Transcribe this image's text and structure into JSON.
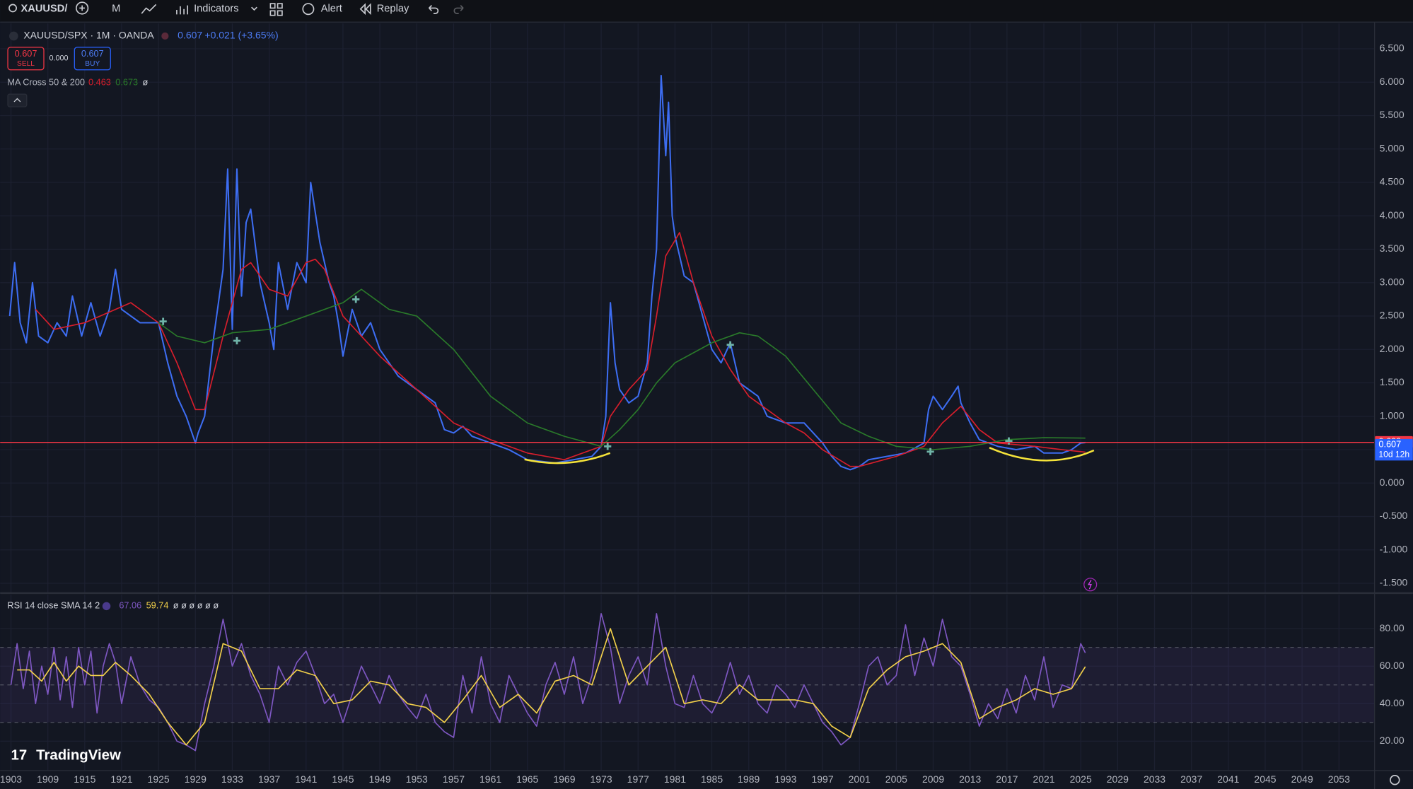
{
  "toolbar": {
    "symbol": "XAUUSD/",
    "interval": "M",
    "indicators": "Indicators",
    "alert": "Alert",
    "replay": "Replay"
  },
  "watermark": "TradingView",
  "chart_data": [
    {
      "type": "line",
      "title": "XAUUSD/SPX · 1M · OANDA",
      "last": 0.607,
      "change": "+0.021 (+3.65%)",
      "sell": {
        "price": 0.607,
        "label": "SELL"
      },
      "spread": "0.000",
      "buy": {
        "price": 0.607,
        "label": "BUY"
      },
      "indicator": {
        "name": "MA Cross 50 & 200",
        "values": [
          0.463,
          0.673
        ],
        "extra": "ø"
      },
      "xlim": [
        1901.3,
        2056.8
      ],
      "xticks": [
        1903,
        1909,
        1915,
        1921,
        1925,
        1929,
        1933,
        1937,
        1941,
        1945,
        1949,
        1953,
        1957,
        1961,
        1965,
        1969,
        1973,
        1977,
        1981,
        1985,
        1989,
        1993,
        1997,
        2001,
        2005,
        2009,
        2013,
        2017,
        2021,
        2025,
        2029,
        2033,
        2037,
        2041,
        2045,
        2049,
        2053
      ],
      "ylim": [
        -1.64,
        6.88
      ],
      "yticks": [
        {
          "value": 6.5,
          "label": "6.500"
        },
        {
          "value": 6,
          "label": "6.000"
        },
        {
          "value": 5.5,
          "label": "5.500"
        },
        {
          "value": 5,
          "label": "5.000"
        },
        {
          "value": 4.5,
          "label": "4.500"
        },
        {
          "value": 4,
          "label": "4.000"
        },
        {
          "value": 3.5,
          "label": "3.500"
        },
        {
          "value": 3,
          "label": "3.000"
        },
        {
          "value": 2.5,
          "label": "2.500"
        },
        {
          "value": 2,
          "label": "2.000"
        },
        {
          "value": 1.5,
          "label": "1.500"
        },
        {
          "value": 1,
          "label": "1.000"
        },
        {
          "value": 0.5,
          "label": "0.500"
        },
        {
          "value": 0,
          "label": "0.000"
        },
        {
          "value": -0.5,
          "label": "-0.500"
        },
        {
          "value": -1,
          "label": "-1.000"
        },
        {
          "value": -1.5,
          "label": "-1.500"
        }
      ],
      "grid": true,
      "series": [
        {
          "color": "#3d6df2",
          "x": [
            1902.8,
            1903.6,
            1904.5,
            1905.5,
            1906.5,
            1907.5,
            1909,
            1910.5,
            1912,
            1913,
            1914.5,
            1916,
            1917.5,
            1919,
            1920,
            1921,
            1923,
            1925,
            1926,
            1927,
            1928,
            1929,
            1929.3,
            1930,
            1931,
            1932,
            1932.5,
            1933,
            1933.5,
            1934,
            1934.5,
            1935,
            1936,
            1937,
            1937.5,
            1938,
            1939,
            1940,
            1941,
            1941.5,
            1942.5,
            1943.5,
            1944,
            1944.5,
            1945,
            1946,
            1947,
            1948,
            1949,
            1950,
            1951,
            1953,
            1955,
            1956,
            1957,
            1958,
            1959,
            1961,
            1963,
            1965,
            1968,
            1970,
            1972,
            1973,
            1973.5,
            1974,
            1974.5,
            1975,
            1976,
            1977,
            1978,
            1978.5,
            1979,
            1979.5,
            1980,
            1980.3,
            1980.7,
            1981,
            1982,
            1983,
            1984,
            1985,
            1986,
            1987,
            1988,
            1989,
            1990,
            1991,
            1993,
            1995,
            1997,
            1998,
            1999,
            2000,
            2001,
            2002,
            2004,
            2006,
            2008,
            2008.5,
            2009,
            2010,
            2011,
            2011.7,
            2012,
            2013,
            2014,
            2015,
            2016,
            2018,
            2020,
            2021,
            2023,
            2024,
            2025,
            2025.5
          ],
          "values": [
            2.5,
            3.3,
            2.4,
            2.1,
            3.0,
            2.2,
            2.1,
            2.4,
            2.2,
            2.8,
            2.2,
            2.7,
            2.2,
            2.6,
            3.2,
            2.6,
            2.4,
            2.4,
            1.8,
            1.3,
            1.0,
            0.6,
            0.75,
            1.0,
            2.2,
            3.2,
            4.7,
            2.3,
            4.7,
            2.8,
            3.9,
            4.1,
            3.0,
            2.4,
            2.0,
            3.3,
            2.6,
            3.3,
            3.0,
            4.5,
            3.6,
            3.0,
            2.8,
            2.4,
            1.9,
            2.6,
            2.2,
            2.4,
            2.0,
            1.8,
            1.6,
            1.4,
            1.2,
            0.8,
            0.75,
            0.85,
            0.7,
            0.6,
            0.5,
            0.35,
            0.3,
            0.35,
            0.4,
            0.55,
            1.0,
            2.7,
            1.8,
            1.4,
            1.2,
            1.3,
            1.8,
            2.8,
            3.5,
            6.1,
            4.9,
            5.7,
            4.0,
            3.7,
            3.1,
            3.0,
            2.5,
            2.0,
            1.8,
            2.1,
            1.5,
            1.4,
            1.3,
            1.0,
            0.9,
            0.9,
            0.6,
            0.4,
            0.25,
            0.2,
            0.25,
            0.35,
            0.4,
            0.45,
            0.6,
            1.1,
            1.3,
            1.1,
            1.3,
            1.45,
            1.2,
            0.9,
            0.65,
            0.6,
            0.55,
            0.5,
            0.55,
            0.45,
            0.45,
            0.5,
            0.6,
            0.607
          ]
        },
        {
          "color": "#d81e2c",
          "x": [
            1907,
            1910,
            1915,
            1920,
            1922,
            1925,
            1927,
            1929,
            1930,
            1932,
            1934,
            1935,
            1937,
            1939,
            1941,
            1942,
            1943,
            1945,
            1947,
            1949,
            1953,
            1957,
            1961,
            1965,
            1969,
            1973,
            1974,
            1976,
            1978,
            1979,
            1980,
            1981.5,
            1983,
            1985,
            1987,
            1989,
            1993,
            1995,
            1997,
            2000,
            2001,
            2005,
            2008,
            2010,
            2012,
            2014,
            2016,
            2020,
            2023,
            2025.5
          ],
          "values": [
            2.6,
            2.3,
            2.4,
            2.6,
            2.7,
            2.4,
            1.8,
            1.1,
            1.1,
            2.2,
            3.2,
            3.3,
            2.9,
            2.8,
            3.3,
            3.35,
            3.2,
            2.5,
            2.2,
            1.9,
            1.4,
            0.9,
            0.65,
            0.45,
            0.35,
            0.55,
            1.0,
            1.4,
            1.7,
            2.5,
            3.4,
            3.75,
            3.0,
            2.2,
            1.7,
            1.3,
            0.9,
            0.75,
            0.5,
            0.25,
            0.25,
            0.4,
            0.55,
            0.9,
            1.15,
            0.8,
            0.6,
            0.55,
            0.5,
            0.463
          ]
        },
        {
          "color": "#2a7a2a",
          "x": [
            1925,
            1927,
            1930,
            1933,
            1937,
            1941,
            1945,
            1947,
            1950,
            1953,
            1957,
            1961,
            1965,
            1969,
            1973,
            1975,
            1977,
            1979,
            1981,
            1985,
            1988,
            1990,
            1993,
            1996,
            1999,
            2002,
            2005,
            2009,
            2013,
            2017,
            2021,
            2025.5
          ],
          "values": [
            2.4,
            2.2,
            2.1,
            2.25,
            2.3,
            2.5,
            2.7,
            2.9,
            2.6,
            2.5,
            2.0,
            1.3,
            0.9,
            0.7,
            0.55,
            0.8,
            1.1,
            1.5,
            1.8,
            2.1,
            2.25,
            2.2,
            1.9,
            1.4,
            0.9,
            0.7,
            0.55,
            0.5,
            0.55,
            0.65,
            0.68,
            0.673
          ]
        }
      ],
      "crosses": {
        "color": "#6fb3a8",
        "x": [
          1925.5,
          1933.5,
          1946.4,
          1973.7,
          1987,
          2008.7,
          2017.2
        ],
        "values": [
          2.42,
          2.13,
          2.75,
          0.55,
          2.07,
          0.47,
          0.63
        ]
      },
      "price_lines": [
        {
          "value": 0.609,
          "color": "#f23645",
          "line": true
        },
        {
          "value": 0.607,
          "color": "#2962ff",
          "countdown": "10d 12h"
        }
      ]
    },
    {
      "type": "line",
      "title": "RSI 14 close SMA 14 2",
      "legend_values": [
        67.06,
        59.74
      ],
      "extra": "ø ø ø ø ø ø",
      "ylim": [
        4.6,
        98.2
      ],
      "yticks": [
        {
          "value": 80,
          "label": "80.00"
        },
        {
          "value": 60,
          "label": "60.00"
        },
        {
          "value": 40,
          "label": "40.00"
        },
        {
          "value": 20,
          "label": "20.00"
        }
      ],
      "bands": [
        30,
        50,
        70
      ],
      "series": [
        {
          "color": "#7e57c2",
          "x": [
            1903,
            1904,
            1905,
            1906,
            1907,
            1908,
            1909,
            1910,
            1911,
            1912,
            1913,
            1914,
            1915,
            1916,
            1917,
            1918,
            1919,
            1920,
            1921,
            1922,
            1923,
            1924,
            1925,
            1926,
            1927,
            1928,
            1929,
            1930,
            1931,
            1932,
            1933,
            1934,
            1935,
            1936,
            1937,
            1938,
            1939,
            1940,
            1941,
            1942,
            1943,
            1944,
            1945,
            1946,
            1947,
            1948,
            1949,
            1950,
            1951,
            1952,
            1953,
            1954,
            1955,
            1956,
            1957,
            1958,
            1959,
            1960,
            1961,
            1962,
            1963,
            1964,
            1965,
            1966,
            1967,
            1968,
            1969,
            1970,
            1971,
            1972,
            1973,
            1974,
            1975,
            1976,
            1977,
            1978,
            1979,
            1980,
            1981,
            1982,
            1983,
            1984,
            1985,
            1986,
            1987,
            1988,
            1989,
            1990,
            1991,
            1992,
            1993,
            1994,
            1995,
            1996,
            1997,
            1998,
            1999,
            2000,
            2001,
            2002,
            2003,
            2004,
            2005,
            2006,
            2007,
            2008,
            2009,
            2010,
            2011,
            2012,
            2013,
            2014,
            2015,
            2016,
            2017,
            2018,
            2019,
            2020,
            2021,
            2022,
            2023,
            2024,
            2025,
            2025.5
          ],
          "values": [
            50,
            72,
            48,
            68,
            40,
            60,
            45,
            70,
            42,
            65,
            38,
            70,
            50,
            68,
            35,
            60,
            72,
            62,
            40,
            65,
            50,
            42,
            38,
            30,
            20,
            18,
            15,
            40,
            60,
            85,
            60,
            72,
            55,
            45,
            30,
            60,
            50,
            62,
            68,
            55,
            40,
            45,
            30,
            45,
            60,
            50,
            40,
            55,
            45,
            38,
            32,
            45,
            30,
            25,
            22,
            55,
            35,
            65,
            40,
            30,
            55,
            45,
            35,
            28,
            50,
            62,
            45,
            65,
            40,
            55,
            88,
            70,
            40,
            55,
            65,
            50,
            88,
            60,
            40,
            38,
            55,
            40,
            35,
            45,
            62,
            45,
            55,
            40,
            35,
            50,
            45,
            38,
            50,
            40,
            30,
            25,
            18,
            22,
            40,
            60,
            65,
            50,
            55,
            82,
            55,
            75,
            60,
            85,
            65,
            60,
            45,
            28,
            40,
            32,
            48,
            35,
            55,
            42,
            65,
            38,
            50,
            48,
            72,
            67.06
          ]
        },
        {
          "color": "#f2d04a",
          "x": [
            1904,
            1906,
            1908,
            1910,
            1912,
            1914,
            1916,
            1918,
            1920,
            1922,
            1924,
            1926,
            1928,
            1930,
            1932,
            1934,
            1936,
            1938,
            1940,
            1942,
            1944,
            1946,
            1948,
            1950,
            1952,
            1954,
            1956,
            1958,
            1960,
            1962,
            1964,
            1966,
            1968,
            1970,
            1972,
            1974,
            1976,
            1978,
            1980,
            1982,
            1984,
            1986,
            1988,
            1990,
            1992,
            1994,
            1996,
            1998,
            2000,
            2002,
            2004,
            2006,
            2008,
            2010,
            2012,
            2014,
            2016,
            2018,
            2020,
            2022,
            2024,
            2025.5
          ],
          "values": [
            58,
            58,
            52,
            62,
            52,
            60,
            55,
            55,
            62,
            55,
            45,
            30,
            18,
            30,
            72,
            68,
            48,
            48,
            58,
            55,
            40,
            42,
            52,
            50,
            40,
            38,
            30,
            42,
            55,
            38,
            45,
            35,
            52,
            55,
            50,
            80,
            50,
            60,
            70,
            40,
            42,
            40,
            50,
            42,
            42,
            42,
            40,
            28,
            22,
            48,
            58,
            65,
            68,
            72,
            62,
            32,
            38,
            42,
            48,
            45,
            48,
            59.74
          ]
        }
      ]
    }
  ]
}
